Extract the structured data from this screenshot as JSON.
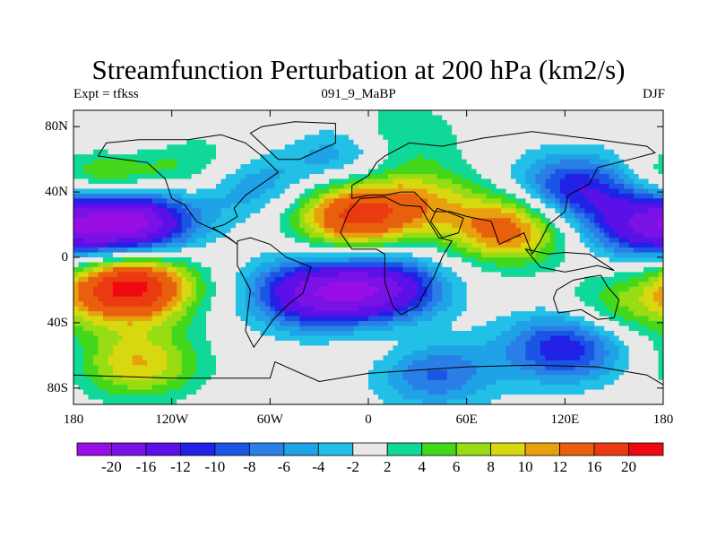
{
  "title": "Streamfunction Perturbation at 200 hPa (km2/s)",
  "subtitles": {
    "left": "Expt = tfkss",
    "center": "091_9_MaBP",
    "right": "DJF"
  },
  "axes": {
    "y_ticks": [
      {
        "value": 80,
        "label": "80N"
      },
      {
        "value": 40,
        "label": "40N"
      },
      {
        "value": 0,
        "label": "0"
      },
      {
        "value": -40,
        "label": "40S"
      },
      {
        "value": -80,
        "label": "80S"
      }
    ],
    "x_ticks": [
      {
        "value": -180,
        "label": "180"
      },
      {
        "value": -120,
        "label": "120W"
      },
      {
        "value": -60,
        "label": "60W"
      },
      {
        "value": 0,
        "label": "0"
      },
      {
        "value": 60,
        "label": "60E"
      },
      {
        "value": 120,
        "label": "120E"
      },
      {
        "value": 180,
        "label": "180"
      }
    ],
    "lon_range": [
      -180,
      180
    ],
    "lat_range": [
      -90,
      90
    ]
  },
  "colorbar": {
    "labels": [
      "-20",
      "-16",
      "-12",
      "-10",
      "-8",
      "-6",
      "-4",
      "-2",
      "2",
      "4",
      "6",
      "8",
      "10",
      "12",
      "16",
      "20"
    ],
    "colors": [
      "#9a0ee6",
      "#7a12e6",
      "#5c10e8",
      "#2222e6",
      "#1a55e6",
      "#2a7fe6",
      "#1fa2e6",
      "#22c0e6",
      "#e8e8e8",
      "#10d898",
      "#44d81c",
      "#98dc14",
      "#d8d810",
      "#e8a00e",
      "#e8600e",
      "#ec3a10",
      "#ee0a10"
    ]
  },
  "field": {
    "blobs": [
      {
        "lon": -145,
        "lat": 22,
        "value": -22
      },
      {
        "lon": -150,
        "lat": 70,
        "value": -4
      },
      {
        "lon": -105,
        "lat": 55,
        "value": 6
      },
      {
        "lon": -160,
        "lat": 48,
        "value": 10
      },
      {
        "lon": -145,
        "lat": -18,
        "value": 22
      },
      {
        "lon": -140,
        "lat": -65,
        "value": 10
      },
      {
        "lon": -75,
        "lat": 45,
        "value": -7
      },
      {
        "lon": -40,
        "lat": 75,
        "value": 2
      },
      {
        "lon": -35,
        "lat": -22,
        "value": -16
      },
      {
        "lon": 10,
        "lat": -20,
        "value": -16
      },
      {
        "lon": -15,
        "lat": 65,
        "value": -8
      },
      {
        "lon": 15,
        "lat": 73,
        "value": 6
      },
      {
        "lon": -10,
        "lat": 25,
        "value": 16
      },
      {
        "lon": 30,
        "lat": 35,
        "value": 8
      },
      {
        "lon": 85,
        "lat": 18,
        "value": 14
      },
      {
        "lon": 125,
        "lat": 42,
        "value": -12
      },
      {
        "lon": 170,
        "lat": 20,
        "value": -14
      },
      {
        "lon": 40,
        "lat": -70,
        "value": -9
      },
      {
        "lon": 120,
        "lat": -55,
        "value": -12
      },
      {
        "lon": 155,
        "lat": -30,
        "value": 6
      },
      {
        "lon": 20,
        "lat": -50,
        "value": 3
      }
    ]
  },
  "continents": [
    [
      [
        -160,
        70
      ],
      [
        -140,
        72
      ],
      [
        -110,
        72
      ],
      [
        -90,
        75
      ],
      [
        -75,
        70
      ],
      [
        -65,
        62
      ],
      [
        -55,
        52
      ],
      [
        -65,
        45
      ],
      [
        -75,
        38
      ],
      [
        -82,
        30
      ],
      [
        -80,
        25
      ],
      [
        -88,
        20
      ],
      [
        -95,
        18
      ],
      [
        -85,
        12
      ],
      [
        -80,
        8
      ],
      [
        -90,
        15
      ],
      [
        -105,
        22
      ],
      [
        -112,
        32
      ],
      [
        -120,
        36
      ],
      [
        -124,
        48
      ],
      [
        -135,
        58
      ],
      [
        -150,
        60
      ],
      [
        -165,
        62
      ]
    ],
    [
      [
        -80,
        10
      ],
      [
        -72,
        12
      ],
      [
        -60,
        8
      ],
      [
        -50,
        0
      ],
      [
        -35,
        -6
      ],
      [
        -40,
        -22
      ],
      [
        -48,
        -28
      ],
      [
        -58,
        -38
      ],
      [
        -65,
        -48
      ],
      [
        -70,
        -55
      ],
      [
        -75,
        -45
      ],
      [
        -72,
        -20
      ],
      [
        -80,
        -5
      ]
    ],
    [
      [
        -55,
        60
      ],
      [
        -42,
        60
      ],
      [
        -20,
        70
      ],
      [
        -20,
        82
      ],
      [
        -45,
        83
      ],
      [
        -65,
        80
      ],
      [
        -72,
        76
      ]
    ],
    [
      [
        -10,
        36
      ],
      [
        -10,
        44
      ],
      [
        0,
        50
      ],
      [
        5,
        58
      ],
      [
        10,
        62
      ],
      [
        25,
        70
      ],
      [
        45,
        68
      ],
      [
        70,
        73
      ],
      [
        100,
        77
      ],
      [
        140,
        72
      ],
      [
        170,
        68
      ],
      [
        175,
        64
      ],
      [
        160,
        60
      ],
      [
        140,
        55
      ],
      [
        135,
        45
      ],
      [
        122,
        38
      ],
      [
        120,
        28
      ],
      [
        110,
        20
      ],
      [
        105,
        10
      ],
      [
        100,
        2
      ],
      [
        95,
        15
      ],
      [
        80,
        8
      ],
      [
        75,
        22
      ],
      [
        60,
        25
      ],
      [
        50,
        28
      ],
      [
        40,
        28
      ],
      [
        35,
        33
      ],
      [
        28,
        40
      ],
      [
        20,
        40
      ],
      [
        10,
        38
      ],
      [
        0,
        38
      ]
    ],
    [
      [
        -17,
        15
      ],
      [
        -10,
        5
      ],
      [
        5,
        5
      ],
      [
        10,
        2
      ],
      [
        10,
        -15
      ],
      [
        15,
        -30
      ],
      [
        20,
        -35
      ],
      [
        30,
        -30
      ],
      [
        35,
        -20
      ],
      [
        40,
        -12
      ],
      [
        45,
        0
      ],
      [
        51,
        10
      ],
      [
        43,
        12
      ],
      [
        35,
        25
      ],
      [
        32,
        31
      ],
      [
        20,
        32
      ],
      [
        10,
        37
      ],
      [
        -5,
        36
      ],
      [
        -12,
        28
      ]
    ],
    [
      [
        42,
        30
      ],
      [
        48,
        28
      ],
      [
        58,
        24
      ],
      [
        55,
        15
      ],
      [
        45,
        12
      ],
      [
        38,
        22
      ]
    ],
    [
      [
        115,
        -20
      ],
      [
        125,
        -14
      ],
      [
        135,
        -12
      ],
      [
        142,
        -11
      ],
      [
        146,
        -18
      ],
      [
        153,
        -26
      ],
      [
        150,
        -37
      ],
      [
        140,
        -38
      ],
      [
        130,
        -32
      ],
      [
        116,
        -34
      ],
      [
        113,
        -25
      ]
    ],
    [
      [
        -180,
        -72
      ],
      [
        -120,
        -74
      ],
      [
        -60,
        -74
      ],
      [
        -57,
        -64
      ],
      [
        -30,
        -76
      ],
      [
        0,
        -71
      ],
      [
        60,
        -67
      ],
      [
        100,
        -66
      ],
      [
        140,
        -67
      ],
      [
        170,
        -72
      ],
      [
        180,
        -78
      ],
      [
        180,
        -90
      ],
      [
        -180,
        -90
      ]
    ],
    [
      [
        96,
        5
      ],
      [
        105,
        -6
      ],
      [
        120,
        -9
      ],
      [
        140,
        -5
      ],
      [
        150,
        -8
      ],
      [
        135,
        2
      ],
      [
        120,
        3
      ],
      [
        110,
        2
      ]
    ]
  ]
}
